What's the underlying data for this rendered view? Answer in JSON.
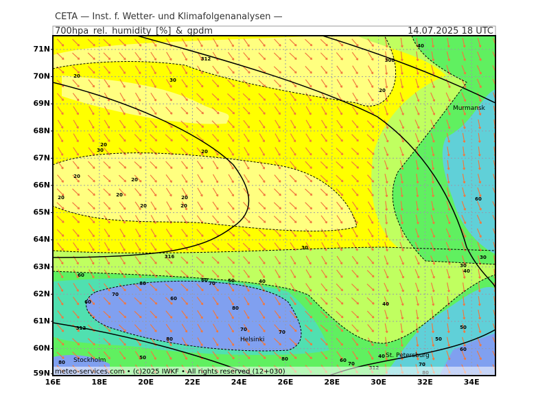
{
  "header": {
    "institute": "CETA — Inst. f. Wetter- und Klimafolgenanalysen —",
    "product": "700hpa_rel._humidity_[%]_&_gpdm",
    "valid_time": "14.07.2025 18 UTC"
  },
  "map": {
    "lat_labels": [
      "71N",
      "70N",
      "69N",
      "68N",
      "67N",
      "66N",
      "65N",
      "64N",
      "63N",
      "62N",
      "61N",
      "60N",
      "59N"
    ],
    "lon_labels": [
      "16E",
      "18E",
      "20E",
      "22E",
      "24E",
      "26E",
      "28E",
      "30E",
      "32E",
      "34E"
    ],
    "cities": [
      "Murmansk",
      "Helsinki",
      "Stockholm",
      "St. Petersburg"
    ],
    "contour_labels": [
      "312",
      "308",
      "40",
      "30",
      "20",
      "20",
      "30",
      "20",
      "20",
      "20",
      "20",
      "20",
      "20",
      "20",
      "20",
      "20",
      "30",
      "316",
      "30",
      "30",
      "60",
      "60",
      "70",
      "50",
      "40",
      "70",
      "80",
      "60",
      "60",
      "80",
      "40",
      "312",
      "70",
      "70",
      "80",
      "50",
      "80",
      "60",
      "70",
      "80",
      "40",
      "50",
      "50",
      "60",
      "70",
      "80",
      "60",
      "40",
      "312"
    ],
    "footer": "meteo-services.com • (c)2025 IWKF • All rights reserved (12+030)"
  }
}
